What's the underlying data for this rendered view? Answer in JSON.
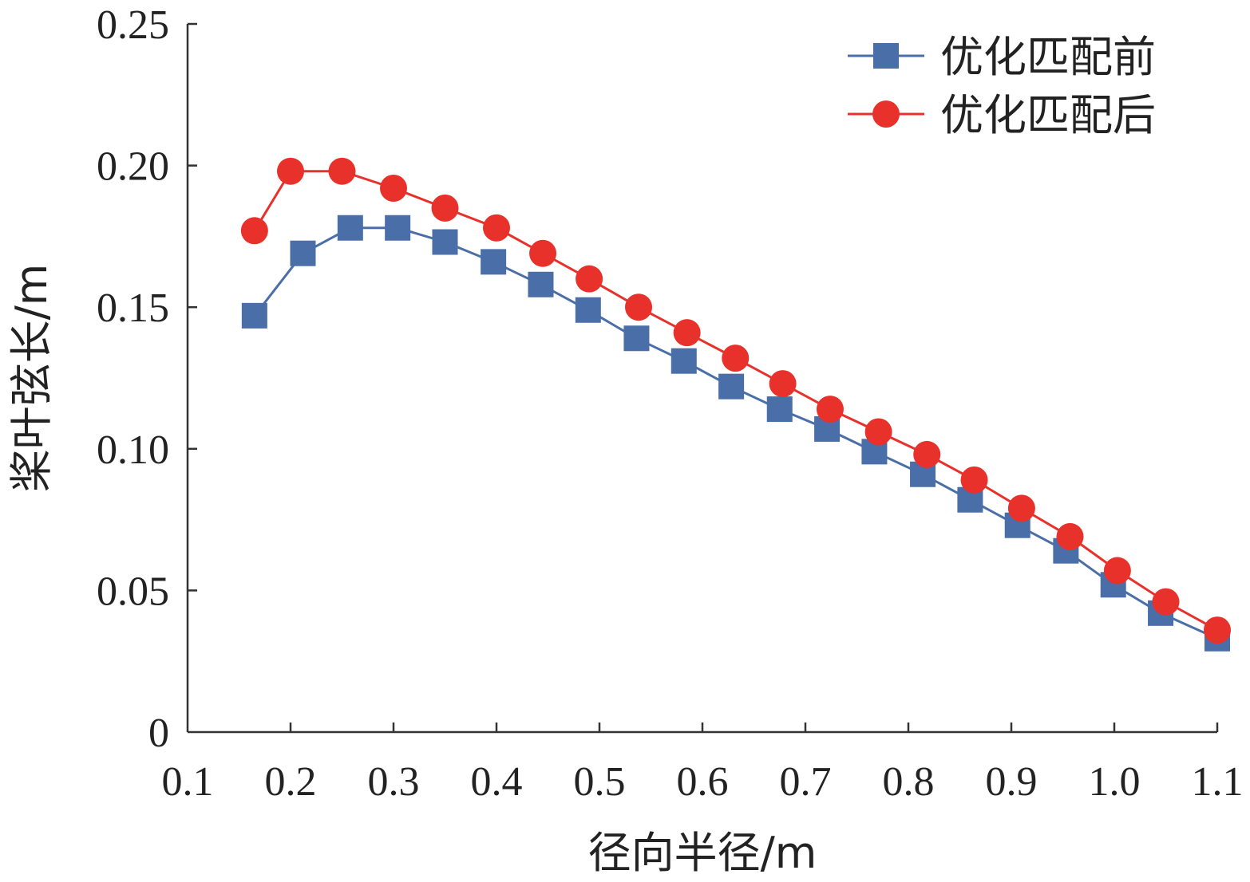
{
  "chart_data": {
    "type": "line",
    "xlabel": "径向半径/m",
    "ylabel": "桨叶弦长/m",
    "xlim": [
      0.1,
      1.1
    ],
    "ylim": [
      0,
      0.25
    ],
    "xticks": [
      "0.1",
      "0.2",
      "0.3",
      "0.4",
      "0.5",
      "0.6",
      "0.7",
      "0.8",
      "0.9",
      "1.0",
      "1.1"
    ],
    "xtick_values": [
      0.1,
      0.2,
      0.3,
      0.4,
      0.5,
      0.6,
      0.7,
      0.8,
      0.9,
      1.0,
      1.1
    ],
    "yticks": [
      "0",
      "0.05",
      "0.10",
      "0.15",
      "0.20",
      "0.25"
    ],
    "ytick_values": [
      0,
      0.05,
      0.1,
      0.15,
      0.2,
      0.25
    ],
    "grid": false,
    "legend_position": "top-right",
    "series": [
      {
        "name": "优化匹配前",
        "color": "#4a6ea8",
        "marker": "square",
        "x": [
          0.165,
          0.212,
          0.258,
          0.304,
          0.35,
          0.397,
          0.443,
          0.489,
          0.536,
          0.582,
          0.628,
          0.675,
          0.721,
          0.767,
          0.814,
          0.86,
          0.906,
          0.953,
          0.999,
          1.045,
          1.1
        ],
        "y": [
          0.147,
          0.169,
          0.178,
          0.178,
          0.173,
          0.166,
          0.158,
          0.149,
          0.139,
          0.131,
          0.122,
          0.114,
          0.107,
          0.099,
          0.091,
          0.082,
          0.073,
          0.064,
          0.052,
          0.042,
          0.033
        ]
      },
      {
        "name": "优化匹配后",
        "color": "#e8312a",
        "marker": "circle",
        "x": [
          0.165,
          0.2,
          0.25,
          0.3,
          0.35,
          0.4,
          0.445,
          0.49,
          0.538,
          0.585,
          0.632,
          0.678,
          0.724,
          0.771,
          0.818,
          0.864,
          0.91,
          0.957,
          1.003,
          1.05,
          1.1
        ],
        "y": [
          0.177,
          0.198,
          0.198,
          0.192,
          0.185,
          0.178,
          0.169,
          0.16,
          0.15,
          0.141,
          0.132,
          0.123,
          0.114,
          0.106,
          0.098,
          0.089,
          0.079,
          0.069,
          0.057,
          0.046,
          0.036
        ]
      }
    ]
  }
}
